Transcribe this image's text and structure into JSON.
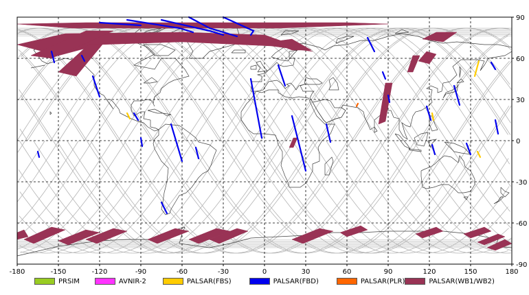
{
  "map": {
    "x_ticks": [
      "-180",
      "-150",
      "-120",
      "-90",
      "-60",
      "-30",
      "0",
      "30",
      "60",
      "90",
      "120",
      "150",
      "180"
    ],
    "y_ticks": [
      "90",
      "60",
      "30",
      "0",
      "-30",
      "-60",
      "-90"
    ],
    "lon_range": [
      -180,
      180
    ],
    "lat_range": [
      -90,
      90
    ],
    "grid": "dashed every 30 degrees",
    "coastline_color": "#404040",
    "orbit_track_color": "#b4b4b4"
  },
  "legend": [
    {
      "label": "PRSIM",
      "color": "#99cc22"
    },
    {
      "label": "AVNIR-2",
      "color": "#ff33ff"
    },
    {
      "label": "PALSAR(FBS)",
      "color": "#ffcc00"
    },
    {
      "label": "PALSAR(FBD)",
      "color": "#0000ee"
    },
    {
      "label": "PALSAR(PLR)",
      "color": "#ff6600"
    },
    {
      "label": "PALSAR(WB1/WB2)",
      "color": "#993355"
    }
  ],
  "footprints": {
    "wb": [
      [
        [
          -180,
          70
        ],
        [
          -145,
          78
        ],
        [
          -60,
          79
        ],
        [
          0,
          77
        ],
        [
          20,
          70
        ],
        [
          35,
          65
        ],
        [
          5,
          69
        ],
        [
          -60,
          72
        ],
        [
          -120,
          70
        ],
        [
          -150,
          62
        ]
      ],
      [
        [
          -180,
          85
        ],
        [
          -130,
          86
        ],
        [
          -60,
          86
        ],
        [
          10,
          86
        ],
        [
          60,
          86
        ],
        [
          90,
          85
        ],
        [
          10,
          82
        ],
        [
          -70,
          82
        ],
        [
          -140,
          82
        ]
      ],
      [
        [
          -150,
          50
        ],
        [
          -128,
          70
        ],
        [
          -118,
          70
        ],
        [
          -137,
          47
        ]
      ],
      [
        [
          -170,
          62
        ],
        [
          -130,
          80
        ],
        [
          -110,
          80
        ],
        [
          -155,
          60
        ]
      ],
      [
        [
          5,
          72
        ],
        [
          20,
          66
        ],
        [
          34,
          66
        ],
        [
          20,
          74
        ]
      ],
      [
        [
          115,
          74
        ],
        [
          125,
          79
        ],
        [
          140,
          79
        ],
        [
          130,
          72
        ]
      ],
      [
        [
          104,
          50
        ],
        [
          108,
          62
        ],
        [
          113,
          62
        ],
        [
          108,
          50
        ]
      ],
      [
        [
          83,
          12
        ],
        [
          88,
          42
        ],
        [
          93,
          42
        ],
        [
          88,
          14
        ]
      ],
      [
        [
          112,
          58
        ],
        [
          118,
          65
        ],
        [
          125,
          63
        ],
        [
          120,
          56
        ]
      ],
      [
        [
          18,
          -5
        ],
        [
          21,
          2
        ],
        [
          24,
          2
        ],
        [
          21,
          -5
        ]
      ],
      [
        [
          -175,
          -72
        ],
        [
          -155,
          -63
        ],
        [
          -145,
          -65
        ],
        [
          -168,
          -75
        ]
      ],
      [
        [
          -150,
          -73
        ],
        [
          -130,
          -65
        ],
        [
          -120,
          -67
        ],
        [
          -143,
          -76
        ]
      ],
      [
        [
          -130,
          -72
        ],
        [
          -110,
          -64
        ],
        [
          -100,
          -66
        ],
        [
          -122,
          -75
        ]
      ],
      [
        [
          -85,
          -72
        ],
        [
          -65,
          -64
        ],
        [
          -55,
          -66
        ],
        [
          -78,
          -75
        ]
      ],
      [
        [
          -55,
          -72
        ],
        [
          -35,
          -64
        ],
        [
          -25,
          -66
        ],
        [
          -48,
          -75
        ]
      ],
      [
        [
          -40,
          -72
        ],
        [
          -20,
          -64
        ],
        [
          -12,
          -66
        ],
        [
          -33,
          -75
        ]
      ],
      [
        [
          20,
          -72
        ],
        [
          40,
          -64
        ],
        [
          50,
          -66
        ],
        [
          28,
          -75
        ]
      ],
      [
        [
          55,
          -67
        ],
        [
          70,
          -62
        ],
        [
          75,
          -65
        ],
        [
          60,
          -70
        ]
      ],
      [
        [
          110,
          -68
        ],
        [
          125,
          -63
        ],
        [
          130,
          -66
        ],
        [
          115,
          -71
        ]
      ],
      [
        [
          145,
          -68
        ],
        [
          160,
          -63
        ],
        [
          165,
          -66
        ],
        [
          150,
          -71
        ]
      ],
      [
        [
          162,
          -78
        ],
        [
          175,
          -72
        ],
        [
          180,
          -75
        ],
        [
          168,
          -80
        ]
      ],
      [
        [
          155,
          -74
        ],
        [
          170,
          -68
        ],
        [
          175,
          -70
        ],
        [
          160,
          -76
        ]
      ],
      [
        [
          -180,
          -67
        ],
        [
          -175,
          -65
        ],
        [
          -172,
          -70
        ],
        [
          -180,
          -72
        ]
      ]
    ],
    "fbd": [
      [
        [
          -155,
          65
        ],
        [
          -153,
          57
        ]
      ],
      [
        [
          -133,
          62
        ],
        [
          -131,
          58
        ]
      ],
      [
        [
          -125,
          47
        ],
        [
          -120,
          32
        ]
      ],
      [
        [
          -95,
          20
        ],
        [
          -92,
          15
        ]
      ],
      [
        [
          -90,
          2
        ],
        [
          -89,
          -4
        ]
      ],
      [
        [
          -68,
          12
        ],
        [
          -60,
          -15
        ]
      ],
      [
        [
          -50,
          -5
        ],
        [
          -48,
          -13
        ]
      ],
      [
        [
          -75,
          -45
        ],
        [
          -71,
          -53
        ]
      ],
      [
        [
          -165,
          -8
        ],
        [
          -164,
          -12
        ]
      ],
      [
        [
          -10,
          45
        ],
        [
          -2,
          2
        ]
      ],
      [
        [
          10,
          55
        ],
        [
          15,
          40
        ]
      ],
      [
        [
          20,
          18
        ],
        [
          30,
          -22
        ]
      ],
      [
        [
          45,
          12
        ],
        [
          48,
          -1
        ]
      ],
      [
        [
          75,
          75
        ],
        [
          80,
          65
        ]
      ],
      [
        [
          86,
          50
        ],
        [
          88,
          45
        ]
      ],
      [
        [
          90,
          33
        ],
        [
          91,
          28
        ]
      ],
      [
        [
          118,
          25
        ],
        [
          121,
          15
        ]
      ],
      [
        [
          122,
          -3
        ],
        [
          124,
          -10
        ]
      ],
      [
        [
          138,
          40
        ],
        [
          142,
          26
        ]
      ],
      [
        [
          147,
          -2
        ],
        [
          150,
          -10
        ]
      ],
      [
        [
          165,
          57
        ],
        [
          168,
          52
        ]
      ],
      [
        [
          168,
          15
        ],
        [
          170,
          5
        ]
      ],
      [
        [
          -55,
          90
        ],
        [
          -40,
          82
        ],
        [
          -20,
          76
        ]
      ],
      [
        [
          -30,
          90
        ],
        [
          -8,
          80
        ],
        [
          -10,
          77
        ]
      ],
      [
        [
          -75,
          88
        ],
        [
          -40,
          80
        ],
        [
          -30,
          77
        ]
      ],
      [
        [
          -100,
          88
        ],
        [
          -62,
          82
        ],
        [
          -52,
          79
        ]
      ],
      [
        [
          -120,
          86
        ],
        [
          -90,
          84
        ]
      ]
    ],
    "fbs": [
      [
        [
          -100,
          20
        ],
        [
          -98,
          16
        ]
      ],
      [
        [
          156,
          58
        ],
        [
          153,
          47
        ]
      ],
      [
        [
          122,
          20
        ],
        [
          123,
          15
        ]
      ],
      [
        [
          155,
          -8
        ],
        [
          157,
          -12
        ]
      ]
    ],
    "plr": [
      [
        [
          68,
          27
        ],
        [
          67,
          25
        ]
      ]
    ]
  }
}
